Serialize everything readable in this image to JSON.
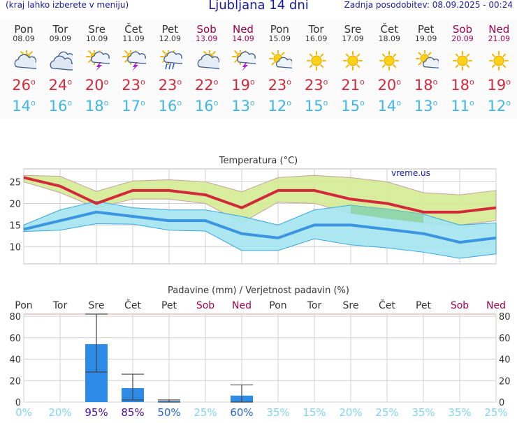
{
  "header": {
    "menu_hint": "(kraj lahko izberete v meniju)",
    "title": "Ljubljana 14 dni",
    "updated": "Zadnja posodobitev: 08.09.2025 - 00:24"
  },
  "degree_symbol": "o",
  "days": [
    {
      "name": "Pon",
      "date": "08.09",
      "weekend": false,
      "icon": "partly-cloudy-icon",
      "max": "26",
      "min": "14"
    },
    {
      "name": "Tor",
      "date": "09.09",
      "weekend": false,
      "icon": "cloudy-icon",
      "max": "24",
      "min": "16"
    },
    {
      "name": "Sre",
      "date": "10.09",
      "weekend": false,
      "icon": "thunderstorm-sun-icon",
      "max": "20",
      "min": "18"
    },
    {
      "name": "Čet",
      "date": "11.09",
      "weekend": false,
      "icon": "thunderstorm-sun-icon",
      "max": "23",
      "min": "17"
    },
    {
      "name": "Pet",
      "date": "12.09",
      "weekend": false,
      "icon": "rain-sun-icon",
      "max": "23",
      "min": "16"
    },
    {
      "name": "Sob",
      "date": "13.09",
      "weekend": true,
      "icon": "partly-cloudy-icon",
      "max": "22",
      "min": "16"
    },
    {
      "name": "Ned",
      "date": "14.09",
      "weekend": true,
      "icon": "thunderstorm-sun-icon",
      "max": "19",
      "min": "13"
    },
    {
      "name": "Pon",
      "date": "15.09",
      "weekend": false,
      "icon": "sun-small-cloud-icon",
      "max": "23",
      "min": "12"
    },
    {
      "name": "Tor",
      "date": "16.09",
      "weekend": false,
      "icon": "sun-icon",
      "max": "23",
      "min": "15"
    },
    {
      "name": "Sre",
      "date": "17.09",
      "weekend": false,
      "icon": "sun-icon",
      "max": "21",
      "min": "15"
    },
    {
      "name": "Čet",
      "date": "18.09",
      "weekend": false,
      "icon": "sun-icon",
      "max": "20",
      "min": "14"
    },
    {
      "name": "Pet",
      "date": "19.09",
      "weekend": false,
      "icon": "sun-small-cloud-icon",
      "max": "18",
      "min": "13"
    },
    {
      "name": "Sob",
      "date": "20.09",
      "weekend": true,
      "icon": "sun-icon",
      "max": "18",
      "min": "11"
    },
    {
      "name": "Ned",
      "date": "21.09",
      "weekend": true,
      "icon": "sun-icon",
      "max": "19",
      "min": "12"
    }
  ],
  "colors": {
    "max_line": "#d22a3b",
    "min_line": "#3b95e0",
    "max_band": "#d4ec94",
    "min_band": "#a4e4f0",
    "overlap_band": "#8ed2a0",
    "bar": "#2e8be6",
    "weekend": "#a4004a"
  },
  "chart_data": [
    {
      "type": "line",
      "title": "Temperatura (°C)",
      "watermark": "vreme.us",
      "ylim": [
        6,
        28
      ],
      "yticks": [
        10,
        15,
        20,
        25
      ],
      "x": [
        0,
        1,
        2,
        3,
        4,
        5,
        6,
        7,
        8,
        9,
        10,
        11,
        12,
        13
      ],
      "series": [
        {
          "values": [
            26,
            24,
            20,
            23,
            23,
            22,
            19,
            23,
            23,
            21,
            20,
            18,
            18,
            19
          ]
        },
        {
          "values": [
            14,
            16,
            18,
            17,
            16,
            16,
            13,
            12,
            15,
            15,
            14,
            13,
            11,
            12
          ]
        }
      ],
      "max_band": {
        "upper": [
          26.5,
          26.3,
          22.8,
          25.2,
          25.5,
          25,
          22.7,
          26,
          26.5,
          26,
          25,
          22.5,
          22,
          23
        ],
        "lower": [
          25,
          22.5,
          19,
          21,
          21,
          20,
          15.5,
          20.3,
          20,
          17.7,
          16.5,
          15.5,
          15,
          16
        ]
      },
      "min_band": {
        "upper": [
          15,
          18.5,
          20.5,
          19,
          18.5,
          18.5,
          17,
          15,
          18.5,
          19.6,
          18.7,
          17.5,
          15,
          15.5
        ],
        "lower": [
          13.5,
          13.8,
          15.3,
          15.2,
          13.8,
          13.6,
          9.1,
          9.1,
          11.8,
          10.4,
          9.7,
          8.7,
          7.3,
          8.3
        ]
      }
    },
    {
      "type": "bar",
      "title": "Padavine (mm) / Verjetnost padavin (%)",
      "ylim": [
        0,
        82
      ],
      "yticks": [
        0,
        20,
        40,
        60,
        80
      ],
      "categories": [
        "Pon",
        "Tor",
        "Sre",
        "Čet",
        "Pet",
        "Sob",
        "Ned",
        "Pon",
        "Tor",
        "Sre",
        "Čet",
        "Pet",
        "Sob",
        "Ned"
      ],
      "values": [
        0,
        0,
        54,
        13,
        1,
        0,
        6,
        0,
        0,
        0,
        0,
        0,
        0,
        0
      ],
      "error_high": [
        null,
        null,
        82,
        26,
        2,
        null,
        16,
        null,
        null,
        null,
        null,
        null,
        null,
        null
      ],
      "error_low": [
        null,
        null,
        28,
        2,
        0,
        null,
        0,
        null,
        null,
        null,
        null,
        null,
        null,
        null
      ],
      "probabilities": [
        "0%",
        "20%",
        "95%",
        "85%",
        "50%",
        "25%",
        "60%",
        "35%",
        "15%",
        "20%",
        "25%",
        "35%",
        "35%",
        "25%"
      ]
    }
  ]
}
